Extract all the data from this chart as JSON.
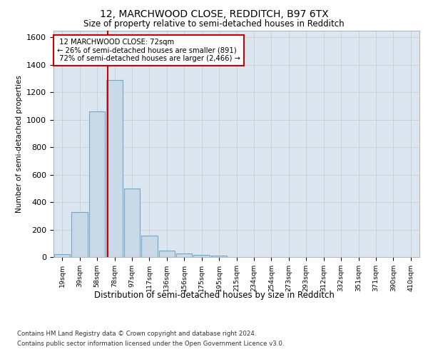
{
  "title1": "12, MARCHWOOD CLOSE, REDDITCH, B97 6TX",
  "title2": "Size of property relative to semi-detached houses in Redditch",
  "xlabel": "Distribution of semi-detached houses by size in Redditch",
  "ylabel": "Number of semi-detached properties",
  "bar_labels": [
    "19sqm",
    "39sqm",
    "58sqm",
    "78sqm",
    "97sqm",
    "117sqm",
    "136sqm",
    "156sqm",
    "175sqm",
    "195sqm",
    "215sqm",
    "234sqm",
    "254sqm",
    "273sqm",
    "293sqm",
    "312sqm",
    "332sqm",
    "351sqm",
    "371sqm",
    "390sqm",
    "410sqm"
  ],
  "bar_values": [
    20,
    330,
    1060,
    1290,
    500,
    155,
    47,
    25,
    18,
    12,
    0,
    0,
    0,
    0,
    0,
    0,
    0,
    0,
    0,
    0,
    0
  ],
  "bar_color": "#c9d9e8",
  "bar_edge_color": "#6fa8c8",
  "line_bar_index": 2.62,
  "property_line_label": "12 MARCHWOOD CLOSE: 72sqm",
  "pct_smaller": "26%",
  "pct_smaller_count": "891",
  "pct_larger": "72%",
  "pct_larger_count": "2,466",
  "annotation_box_color": "#cc0000",
  "ylim": [
    0,
    1650
  ],
  "yticks": [
    0,
    200,
    400,
    600,
    800,
    1000,
    1200,
    1400,
    1600
  ],
  "grid_color": "#cccccc",
  "bg_color": "#dce6f0",
  "footnote1": "Contains HM Land Registry data © Crown copyright and database right 2024.",
  "footnote2": "Contains public sector information licensed under the Open Government Licence v3.0."
}
